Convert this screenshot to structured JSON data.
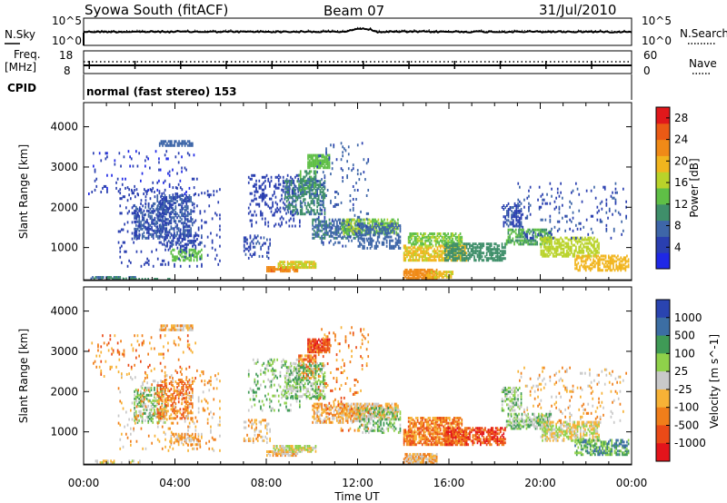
{
  "header": {
    "title": "Syowa South (fitACF)",
    "beam": "Beam 07",
    "date": "31/Jul/2010"
  },
  "strip_noise": {
    "left_label": "N.Sky",
    "right_label": "N.Search",
    "left_ticks": [
      "10^5",
      "10^0"
    ],
    "right_ticks": [
      "10^5",
      "10^0"
    ]
  },
  "strip_freq": {
    "left_label": "Freq.",
    "left_unit": "[MHz]",
    "right_label": "Nave",
    "left_ticks": [
      "18",
      "8"
    ],
    "right_ticks": [
      "60",
      "0"
    ]
  },
  "cpid": {
    "label": "CPID",
    "program": "normal (fast stereo) 153"
  },
  "colors": {
    "power": [
      "#1f28e6",
      "#2a3fb0",
      "#3e66a8",
      "#3f8f6a",
      "#5fbf46",
      "#b9d32a",
      "#f1b51e",
      "#f08a17",
      "#ea5a15",
      "#e0181b"
    ],
    "velocity": [
      "#e3141b",
      "#ea4a17",
      "#f07e1a",
      "#f7b236",
      "#c9c9c9",
      "#8fd14a",
      "#3f9a56",
      "#3c6ea3",
      "#2a44b0"
    ],
    "ground_scatter": "#a9a9a9"
  },
  "chart_data": [
    {
      "type": "heatmap",
      "panel": "power",
      "ylabel": "Slant Range [km]",
      "xlabel": "",
      "ylim": [
        180,
        4600
      ],
      "x_ticks": [
        "00:00",
        "04:00",
        "08:00",
        "12:00",
        "16:00",
        "20:00",
        "00:00"
      ],
      "y_ticks": [
        1000,
        2000,
        3000,
        4000
      ],
      "colorbar": {
        "label": "Power [dB]",
        "range": [
          0,
          30
        ],
        "ticks": [
          "4",
          "8",
          "12",
          "16",
          "20",
          "24",
          "28"
        ]
      },
      "regions": [
        {
          "t": [
            0.3,
            2.3
          ],
          "r": [
            190,
            260
          ],
          "v": 8,
          "d": 0.6
        },
        {
          "t": [
            1.0,
            3.8
          ],
          "r": [
            180,
            230
          ],
          "v": 10,
          "d": 0.5
        },
        {
          "t": [
            2.2,
            3.5
          ],
          "r": [
            1200,
            2100
          ],
          "v": 6,
          "d": 0.45
        },
        {
          "t": [
            3.2,
            4.8
          ],
          "r": [
            1300,
            2300
          ],
          "v": 6,
          "d": 0.5
        },
        {
          "t": [
            3.3,
            4.8
          ],
          "r": [
            3500,
            3650
          ],
          "v": 7,
          "d": 0.75
        },
        {
          "t": [
            3.8,
            5.2
          ],
          "r": [
            650,
            950
          ],
          "v": 13,
          "d": 0.55
        },
        {
          "t": [
            3.5,
            5.2
          ],
          "r": [
            1000,
            1300
          ],
          "v": 5,
          "d": 0.45
        },
        {
          "t": [
            0.2,
            5.0
          ],
          "r": [
            2300,
            3400
          ],
          "v": 3,
          "d": 0.06
        },
        {
          "t": [
            1.5,
            6.0
          ],
          "r": [
            500,
            2500
          ],
          "v": 4,
          "d": 0.08
        },
        {
          "t": [
            7.0,
            8.2
          ],
          "r": [
            700,
            1300
          ],
          "v": 5,
          "d": 0.25
        },
        {
          "t": [
            7.2,
            9.5
          ],
          "r": [
            1500,
            2800
          ],
          "v": 4,
          "d": 0.2
        },
        {
          "t": [
            8.0,
            9.4
          ],
          "r": [
            380,
            520
          ],
          "v": 23,
          "d": 0.9
        },
        {
          "t": [
            8.5,
            10.2
          ],
          "r": [
            470,
            650
          ],
          "v": 17,
          "d": 0.75
        },
        {
          "t": [
            9.4,
            10.2
          ],
          "r": [
            2300,
            2900
          ],
          "v": 11,
          "d": 0.6
        },
        {
          "t": [
            9.8,
            10.8
          ],
          "r": [
            2950,
            3300
          ],
          "v": 13,
          "d": 0.8
        },
        {
          "t": [
            8.8,
            10.6
          ],
          "r": [
            1800,
            2700
          ],
          "v": 9,
          "d": 0.45
        },
        {
          "t": [
            10.0,
            12.2
          ],
          "r": [
            1200,
            1700
          ],
          "v": 8,
          "d": 0.55
        },
        {
          "t": [
            11.3,
            13.8
          ],
          "r": [
            1300,
            1700
          ],
          "v": 14,
          "d": 0.6
        },
        {
          "t": [
            12.0,
            13.9
          ],
          "r": [
            950,
            1600
          ],
          "v": 7,
          "d": 0.45
        },
        {
          "t": [
            10.2,
            12.5
          ],
          "r": [
            1000,
            3600
          ],
          "v": 6,
          "d": 0.06
        },
        {
          "t": [
            14.0,
            15.5
          ],
          "r": [
            200,
            450
          ],
          "v": 22,
          "d": 0.85
        },
        {
          "t": [
            15.0,
            16.2
          ],
          "r": [
            230,
            400
          ],
          "v": 18,
          "d": 0.6
        },
        {
          "t": [
            14.0,
            16.8
          ],
          "r": [
            650,
            1050
          ],
          "v": 18,
          "d": 0.7
        },
        {
          "t": [
            14.2,
            16.6
          ],
          "r": [
            1050,
            1350
          ],
          "v": 14,
          "d": 0.6
        },
        {
          "t": [
            15.8,
            18.5
          ],
          "r": [
            650,
            1100
          ],
          "v": 10,
          "d": 0.6
        },
        {
          "t": [
            18.3,
            19.2
          ],
          "r": [
            1500,
            2100
          ],
          "v": 5,
          "d": 0.45
        },
        {
          "t": [
            18.5,
            20.5
          ],
          "r": [
            1050,
            1450
          ],
          "v": 12,
          "d": 0.55
        },
        {
          "t": [
            20.0,
            22.6
          ],
          "r": [
            750,
            1250
          ],
          "v": 16,
          "d": 0.6
        },
        {
          "t": [
            21.5,
            23.9
          ],
          "r": [
            400,
            800
          ],
          "v": 19,
          "d": 0.55
        },
        {
          "t": [
            19.0,
            23.8
          ],
          "r": [
            1200,
            2600
          ],
          "v": 5,
          "d": 0.07
        }
      ]
    },
    {
      "type": "heatmap",
      "panel": "velocity",
      "ylabel": "Slant Range [km]",
      "xlabel": "Time UT",
      "ylim": [
        180,
        4600
      ],
      "x_ticks": [
        "00:00",
        "04:00",
        "08:00",
        "12:00",
        "16:00",
        "20:00",
        "00:00"
      ],
      "y_ticks": [
        1000,
        2000,
        3000,
        4000
      ],
      "colorbar": {
        "label": "Velocity [m s^-1]",
        "ticks": [
          "1000",
          "500",
          "100",
          "25",
          "-25",
          "-100",
          "-500",
          "-1000"
        ]
      },
      "regions": [
        {
          "t": [
            0.5,
            2.5
          ],
          "r": [
            200,
            280
          ],
          "v": 4,
          "d": 0.35
        },
        {
          "t": [
            2.2,
            3.6
          ],
          "r": [
            1200,
            2100
          ],
          "v": 5,
          "d": 0.4
        },
        {
          "t": [
            3.2,
            4.8
          ],
          "r": [
            1300,
            2300
          ],
          "v": 2,
          "d": 0.45
        },
        {
          "t": [
            3.3,
            4.8
          ],
          "r": [
            3500,
            3650
          ],
          "v": 3,
          "d": 0.75
        },
        {
          "t": [
            3.8,
            5.2
          ],
          "r": [
            650,
            950
          ],
          "v": 3,
          "d": 0.55
        },
        {
          "t": [
            0.2,
            5.0
          ],
          "r": [
            2300,
            3400
          ],
          "v": 2,
          "d": 0.06
        },
        {
          "t": [
            1.5,
            6.0
          ],
          "r": [
            500,
            2500
          ],
          "v": 3,
          "d": 0.08
        },
        {
          "t": [
            7.0,
            8.2
          ],
          "r": [
            700,
            1300
          ],
          "v": 3,
          "d": 0.25
        },
        {
          "t": [
            7.2,
            9.5
          ],
          "r": [
            1500,
            2800
          ],
          "v": 5,
          "d": 0.2
        },
        {
          "t": [
            8.0,
            9.4
          ],
          "r": [
            380,
            520
          ],
          "v": 3,
          "d": 0.85
        },
        {
          "t": [
            8.3,
            10.2
          ],
          "r": [
            480,
            650
          ],
          "v": 4,
          "d": 0.75
        },
        {
          "t": [
            9.4,
            10.2
          ],
          "r": [
            2300,
            2900
          ],
          "v": 2,
          "d": 0.6
        },
        {
          "t": [
            9.8,
            10.8
          ],
          "r": [
            2950,
            3300
          ],
          "v": 1,
          "d": 0.85
        },
        {
          "t": [
            8.8,
            10.6
          ],
          "r": [
            1800,
            2700
          ],
          "v": 5,
          "d": 0.45
        },
        {
          "t": [
            10.0,
            12.2
          ],
          "r": [
            1200,
            1700
          ],
          "v": 3,
          "d": 0.55
        },
        {
          "t": [
            11.3,
            13.8
          ],
          "r": [
            1300,
            1700
          ],
          "v": 3,
          "d": 0.6
        },
        {
          "t": [
            12.0,
            13.9
          ],
          "r": [
            950,
            1600
          ],
          "v": 5,
          "d": 0.45
        },
        {
          "t": [
            10.2,
            12.5
          ],
          "r": [
            1000,
            3600
          ],
          "v": 2,
          "d": 0.06
        },
        {
          "t": [
            14.0,
            15.5
          ],
          "r": [
            200,
            450
          ],
          "v": 3,
          "d": 0.8
        },
        {
          "t": [
            14.0,
            16.8
          ],
          "r": [
            650,
            1050
          ],
          "v": 2,
          "d": 0.7
        },
        {
          "t": [
            14.2,
            16.6
          ],
          "r": [
            1050,
            1350
          ],
          "v": 2,
          "d": 0.65
        },
        {
          "t": [
            15.8,
            18.5
          ],
          "r": [
            650,
            1100
          ],
          "v": 1,
          "d": 0.6
        },
        {
          "t": [
            18.3,
            19.2
          ],
          "r": [
            1500,
            2100
          ],
          "v": 5,
          "d": 0.45
        },
        {
          "t": [
            18.5,
            20.5
          ],
          "r": [
            1050,
            1450
          ],
          "v": 5,
          "d": 0.55
        },
        {
          "t": [
            20.0,
            22.6
          ],
          "r": [
            750,
            1250
          ],
          "v": 4,
          "d": 0.6
        },
        {
          "t": [
            21.5,
            23.9
          ],
          "r": [
            400,
            800
          ],
          "v": 6,
          "d": 0.55
        },
        {
          "t": [
            19.0,
            23.8
          ],
          "r": [
            1200,
            2600
          ],
          "v": 3,
          "d": 0.07
        }
      ]
    }
  ]
}
